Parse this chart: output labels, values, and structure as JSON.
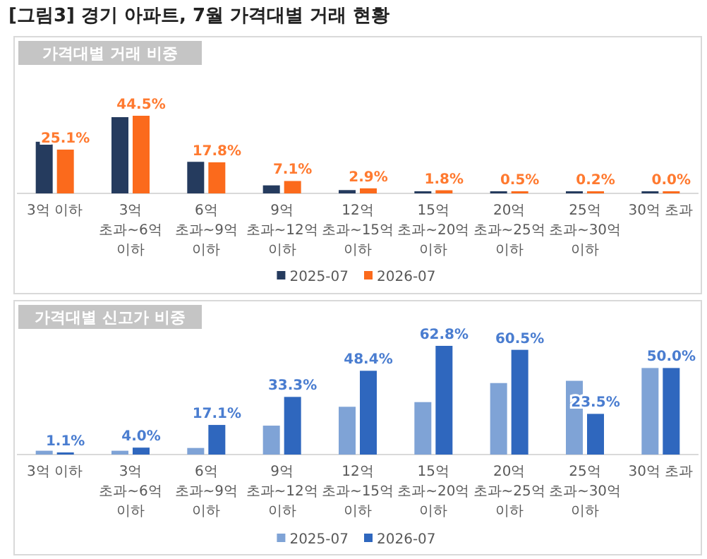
{
  "chart_data": [
    {
      "type": "bar",
      "title": "[그림3] 경기 아파트, 7월 가격대별 거래 현황",
      "subtitle": "가격대별 거래 비중",
      "categories": [
        "3억 이하",
        "3억 초과~6억 이하",
        "6억 초과~9억 이하",
        "9억 초과~12억 이하",
        "12억 초과~15억 이하",
        "15억 초과~20억 이하",
        "20억 초과~25억 이하",
        "25억 초과~30억 이하",
        "30억 초과"
      ],
      "series": [
        {
          "name": "2025-07",
          "color": "#253b5e",
          "values": [
            29.6,
            43.7,
            18.1,
            4.6,
            1.9,
            1.1,
            0.6,
            0.3,
            0.1
          ]
        },
        {
          "name": "2026-07",
          "color": "#fb6a1c",
          "values": [
            25.1,
            44.5,
            17.8,
            7.1,
            2.9,
            1.8,
            0.5,
            0.2,
            0.0
          ],
          "value_labels": [
            "25.1%",
            "44.5%",
            "17.8%",
            "7.1%",
            "2.9%",
            "1.8%",
            "0.5%",
            "0.2%",
            "0.0%"
          ]
        }
      ],
      "legend": "bottom"
    },
    {
      "type": "bar",
      "title": "가격대별 신고가 비중",
      "categories": [
        "3억 이하",
        "3억 초과~6억 이하",
        "6억 초과~9억 이하",
        "9억 초과~12억 이하",
        "12억 초과~15억 이하",
        "15억 초과~20억 이하",
        "20억 초과~25억 이하",
        "25억 초과~30억 이하",
        "30억 초과"
      ],
      "series": [
        {
          "name": "2025-07",
          "color": "#7fa3d6",
          "values": [
            2.2,
            2.2,
            3.8,
            16.7,
            27.6,
            30.3,
            41.3,
            42.6,
            50.0
          ]
        },
        {
          "name": "2026-07",
          "color": "#2f67be",
          "values": [
            1.1,
            4.0,
            17.1,
            33.3,
            48.4,
            62.8,
            60.5,
            23.5,
            50.0
          ],
          "value_labels": [
            "1.1%",
            "4.0%",
            "17.1%",
            "33.3%",
            "48.4%",
            "62.8%",
            "60.5%",
            "23.5%",
            "50.0%"
          ]
        }
      ],
      "legend": "bottom"
    }
  ]
}
